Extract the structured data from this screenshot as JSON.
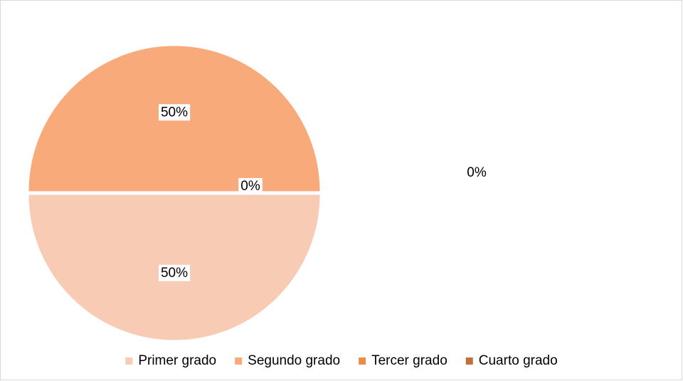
{
  "chart_data": {
    "type": "pie",
    "categories": [
      "Primer grado",
      "Segundo grado",
      "Tercer grado",
      "Cuarto grado"
    ],
    "values": [
      50,
      50,
      0,
      0
    ],
    "value_labels": [
      "50%",
      "50%",
      "0%",
      "0%"
    ],
    "colors": [
      "#f8cbb4",
      "#f8aa7a",
      "#ef8b46",
      "#c0703a"
    ],
    "legend": "bottom"
  }
}
